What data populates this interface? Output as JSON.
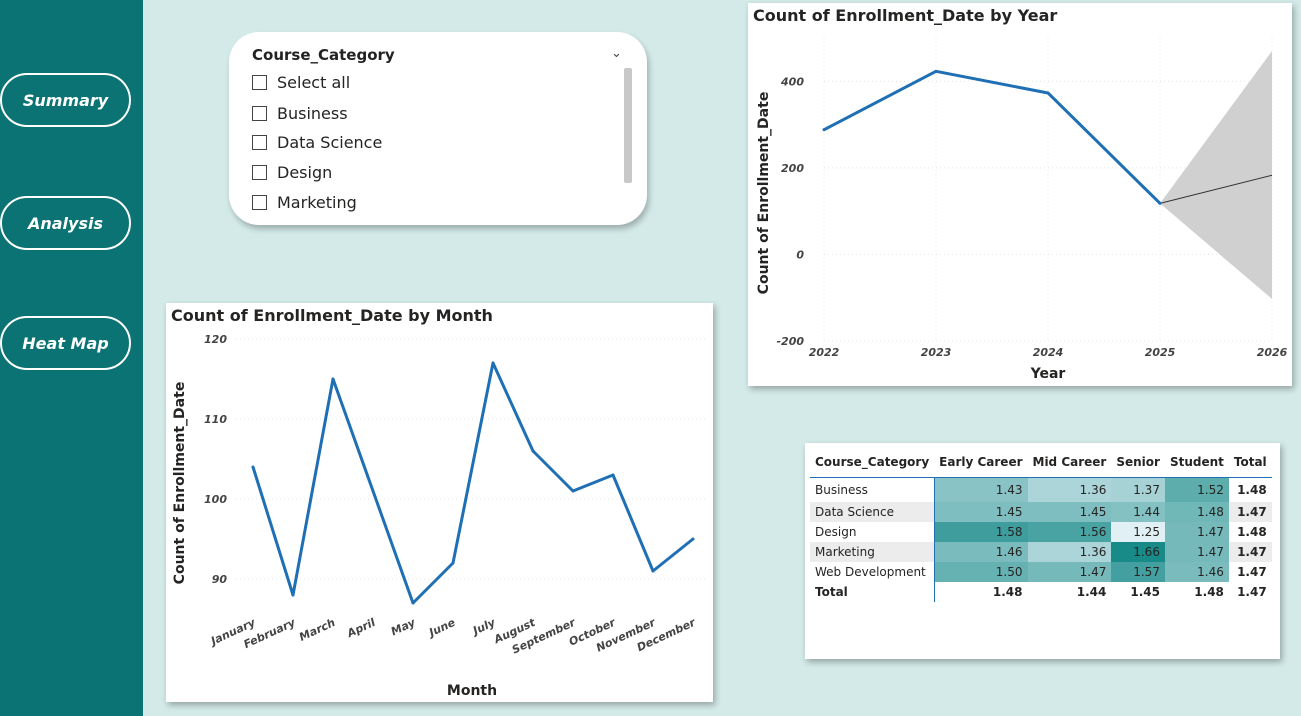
{
  "nav": {
    "summary": "Summary",
    "analysis": "Analysis",
    "heatmap": "Heat Map"
  },
  "slicer": {
    "title": "Course_Category",
    "items": [
      "Select all",
      "Business",
      "Data Science",
      "Design",
      "Marketing"
    ]
  },
  "colors": {
    "sidebar": "#0b7373",
    "background": "#d3eae8",
    "line": "#1f6fb5",
    "forecast_band": "#d0d0d0"
  },
  "chart_year": {
    "title": "Count of Enrollment_Date by Year",
    "xlabel": "Year",
    "ylabel": "Count of Enrollment_Date",
    "yticks": [
      "400",
      "200",
      "0",
      "-200"
    ],
    "xticks": [
      "2022",
      "2023",
      "2024",
      "2025",
      "2026"
    ]
  },
  "chart_month": {
    "title": "Count of Enrollment_Date by Month",
    "xlabel": "Month",
    "ylabel": "Count of Enrollment_Date",
    "yticks": [
      "120",
      "110",
      "100",
      "90"
    ],
    "xticks": [
      "January",
      "February",
      "March",
      "April",
      "May",
      "June",
      "July",
      "August",
      "September",
      "October",
      "November",
      "December"
    ]
  },
  "chart_data": [
    {
      "type": "line",
      "title": "Count of Enrollment_Date by Year",
      "xlabel": "Year",
      "ylabel": "Count of Enrollment_Date",
      "x": [
        2022,
        2023,
        2024,
        2025
      ],
      "values": [
        288,
        423,
        373,
        118
      ],
      "forecast": {
        "x": [
          2025,
          2026
        ],
        "values": [
          118,
          183
        ],
        "upper": [
          118,
          470
        ],
        "lower": [
          118,
          -103
        ]
      },
      "xlim": [
        2022,
        2026
      ],
      "ylim": [
        -200,
        500
      ],
      "grid": true
    },
    {
      "type": "line",
      "title": "Count of Enrollment_Date by Month",
      "xlabel": "Month",
      "ylabel": "Count of Enrollment_Date",
      "categories": [
        "January",
        "February",
        "March",
        "April",
        "May",
        "June",
        "July",
        "August",
        "September",
        "October",
        "November",
        "December"
      ],
      "values": [
        104,
        88,
        115,
        101,
        87,
        92,
        117,
        106,
        101,
        103,
        91,
        95
      ],
      "ylim": [
        87,
        120
      ],
      "grid": true
    }
  ],
  "matrix": {
    "headers": [
      "Course_Category",
      "Early Career",
      "Mid Career",
      "Senior",
      "Student",
      "Total"
    ],
    "rows": [
      {
        "label": "Business",
        "values": [
          "1.43",
          "1.36",
          "1.37",
          "1.52"
        ],
        "total": "1.48"
      },
      {
        "label": "Data Science",
        "values": [
          "1.45",
          "1.45",
          "1.44",
          "1.48"
        ],
        "total": "1.47"
      },
      {
        "label": "Design",
        "values": [
          "1.58",
          "1.56",
          "1.25",
          "1.47"
        ],
        "total": "1.48"
      },
      {
        "label": "Marketing",
        "values": [
          "1.46",
          "1.36",
          "1.66",
          "1.47"
        ],
        "total": "1.47"
      },
      {
        "label": "Web Development",
        "values": [
          "1.50",
          "1.47",
          "1.57",
          "1.46"
        ],
        "total": "1.47"
      }
    ],
    "total_row": {
      "label": "Total",
      "values": [
        "1.48",
        "1.44",
        "1.45",
        "1.48"
      ],
      "total": "1.47"
    },
    "heat_min": 1.25,
    "heat_max": 1.66
  }
}
